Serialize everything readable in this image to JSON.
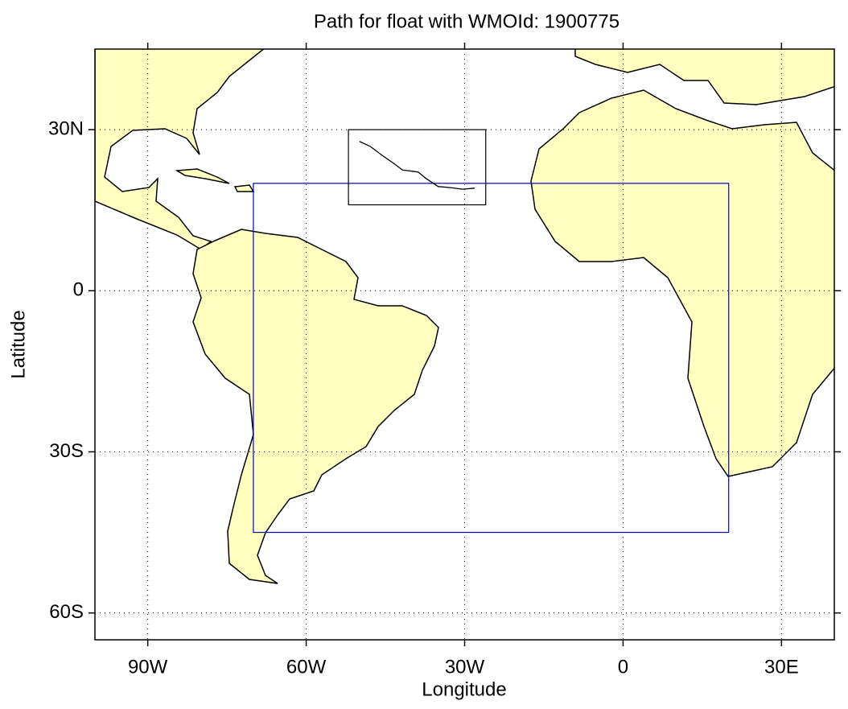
{
  "chart_data": {
    "type": "map",
    "title": "Path for float with WMOId: 1900775",
    "x_label": "Longitude",
    "y_label": "Latitude",
    "xlim": [
      -100,
      40
    ],
    "ylim": [
      -65,
      45
    ],
    "xticks": [
      {
        "value": -90,
        "label": "90W"
      },
      {
        "value": -60,
        "label": "60W"
      },
      {
        "value": -30,
        "label": "30W"
      },
      0,
      {
        "value": 30,
        "label": "30E"
      }
    ],
    "yticks": [
      {
        "value": 30,
        "label": "30N"
      },
      0,
      {
        "value": -30,
        "label": "30S"
      },
      {
        "value": -60,
        "label": "60S"
      }
    ],
    "grid": true,
    "regions": [
      {
        "lon": [
          -70,
          20
        ],
        "lat": [
          -45,
          20
        ],
        "color": "#0000cc"
      },
      {
        "lon": [
          -52,
          -26
        ],
        "lat": [
          16,
          30
        ],
        "color": "#000000"
      }
    ],
    "series": [
      {
        "color": "#000000",
        "x": [
          -49.9,
          -47.9,
          -45.6,
          -43.4,
          -41.8,
          -38.8,
          -37.3,
          -35.0,
          -32.7,
          -30.4,
          -28.1
        ],
        "values": [
          27.8,
          26.9,
          25.2,
          23.7,
          22.5,
          22.1,
          20.9,
          19.4,
          19.2,
          18.9,
          19.1
        ]
      }
    ]
  }
}
